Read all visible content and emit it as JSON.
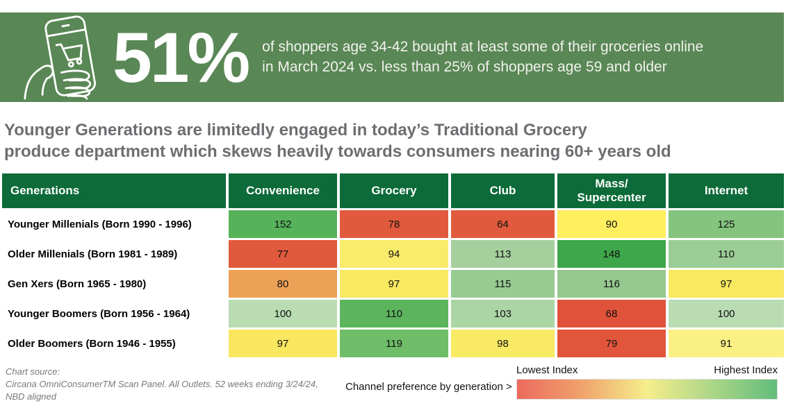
{
  "banner": {
    "bg_color": "#598755",
    "icon": "hand-holding-phone-with-shopping-cart-icon",
    "stat_value": "51%",
    "description": "of shoppers age 34-42 bought at least some of their groceries online\nin March 2024 vs. less than 25% of shoppers age 59 and older"
  },
  "headline": "Younger Generations are limitedly engaged in today’s Traditional Grocery\nproduce department which skews heavily towards consumers nearing 60+ years old",
  "chart_data": {
    "type": "heatmap",
    "corner_header": "Generations",
    "columns": [
      "Convenience",
      "Grocery",
      "Club",
      "Mass/\nSupercenter",
      "Internet"
    ],
    "rows": [
      {
        "label": "Younger Millenials (Born 1990 - 1996)",
        "values": [
          152,
          78,
          64,
          90,
          125
        ],
        "cell_colors": [
          "#57b35a",
          "#e15a3d",
          "#e15a3d",
          "#ffee5e",
          "#84c47e"
        ]
      },
      {
        "label": "Older Millenials (Born 1981 - 1989)",
        "values": [
          77,
          94,
          113,
          148,
          110
        ],
        "cell_colors": [
          "#e15a3d",
          "#f9ec6a",
          "#a5cf9d",
          "#3fa74b",
          "#9ccd96"
        ]
      },
      {
        "label": "Gen Xers (Born 1965 - 1980)",
        "values": [
          80,
          97,
          115,
          116,
          97
        ],
        "cell_colors": [
          "#eda157",
          "#f8e960",
          "#98cb92",
          "#95c98f",
          "#f8e960"
        ]
      },
      {
        "label": "Younger Boomers (Born 1956 - 1964)",
        "values": [
          100,
          110,
          103,
          68,
          100
        ],
        "cell_colors": [
          "#b9dcb2",
          "#5cb45d",
          "#abd5a4",
          "#e0523a",
          "#b9dcb2"
        ]
      },
      {
        "label": "Older Boomers (Born 1946 - 1955)",
        "values": [
          97,
          119,
          98,
          79,
          91
        ],
        "cell_colors": [
          "#f8e75f",
          "#6fbd68",
          "#f9ea64",
          "#e0553c",
          "#fbf083"
        ]
      }
    ],
    "header_bg": "#0c6b38",
    "color_scale_note": "red = lowest index, green = highest index",
    "legend": {
      "low_label": "Lowest Index",
      "high_label": "Highest Index",
      "gradient_stops": [
        "#ec6a5e",
        "#efa06b",
        "#f6ee8b",
        "#b5d989",
        "#62bd7c"
      ]
    }
  },
  "footer": {
    "source": "Chart source:\nCircana OmniConsumerTM Scan Panel. All Outlets. 52 weeks ending 3/24/24,\nNBD aligned",
    "legend_caption": "Channel preference by generation >"
  }
}
